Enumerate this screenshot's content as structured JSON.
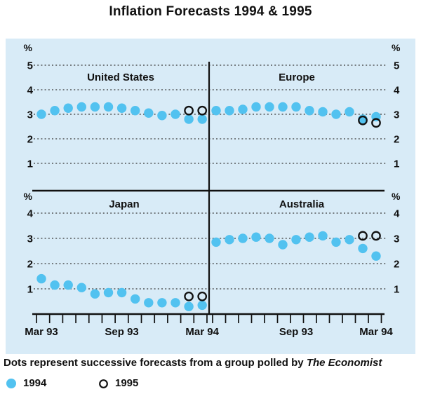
{
  "title": "Inflation Forecasts 1994 & 1995",
  "percent_symbol": "%",
  "caption": {
    "text": "Dots represent successive forecasts from a group polled by ",
    "source": "The Economist"
  },
  "legend": [
    {
      "label": "1994",
      "marker": "filled-dot"
    },
    {
      "label": "1995",
      "marker": "open-circle"
    }
  ],
  "colors": {
    "dot_1994": "#52C2F0",
    "circle_1995": "#111111",
    "panel_background": "#D8EBF7",
    "ink": "#111111",
    "gridline": "#3a3a3a"
  },
  "x_axis": {
    "left_labels": [
      {
        "label": "Mar 93",
        "month": 1
      },
      {
        "label": "Sep 93",
        "month": 7
      },
      {
        "label": "Mar 94",
        "month": 13
      }
    ],
    "right_labels": [
      {
        "label": "Sep 93",
        "month": 7
      },
      {
        "label": "Mar 94",
        "month": 13
      }
    ]
  },
  "chart_data": [
    {
      "type": "scatter",
      "title": "United States",
      "panel": "top-left",
      "x_range": [
        "Mar 93",
        "Mar 94"
      ],
      "ylim": [
        0,
        5
      ],
      "yticks": [
        1,
        2,
        3,
        4,
        5
      ],
      "series": [
        {
          "name": "1994",
          "marker": "filled-dot",
          "values": [
            3.0,
            3.15,
            3.25,
            3.3,
            3.3,
            3.3,
            3.25,
            3.15,
            3.05,
            2.95,
            3.0,
            2.8,
            2.8
          ]
        },
        {
          "name": "1995",
          "marker": "open-circle",
          "start_month": 12,
          "values": [
            3.15,
            3.15
          ]
        }
      ]
    },
    {
      "type": "scatter",
      "title": "Europe",
      "panel": "top-right",
      "x_range": [
        "Mar 93",
        "Mar 94"
      ],
      "ylim": [
        0,
        5
      ],
      "yticks": [
        1,
        2,
        3,
        4,
        5
      ],
      "series": [
        {
          "name": "1994",
          "marker": "filled-dot",
          "values": [
            3.15,
            3.15,
            3.2,
            3.3,
            3.3,
            3.3,
            3.3,
            3.15,
            3.1,
            3.0,
            3.1,
            2.8,
            2.9
          ]
        },
        {
          "name": "1995",
          "marker": "open-circle",
          "start_month": 12,
          "values": [
            2.75,
            2.65
          ]
        }
      ]
    },
    {
      "type": "scatter",
      "title": "Japan",
      "panel": "bottom-left",
      "x_range": [
        "Mar 93",
        "Mar 94"
      ],
      "ylim": [
        0,
        4
      ],
      "yticks": [
        1,
        2,
        3,
        4
      ],
      "series": [
        {
          "name": "1994",
          "marker": "filled-dot",
          "values": [
            1.4,
            1.15,
            1.15,
            1.05,
            0.8,
            0.85,
            0.85,
            0.6,
            0.45,
            0.45,
            0.45,
            0.3,
            0.35
          ]
        },
        {
          "name": "1995",
          "marker": "open-circle",
          "start_month": 12,
          "values": [
            0.7,
            0.7
          ]
        }
      ]
    },
    {
      "type": "scatter",
      "title": "Australia",
      "panel": "bottom-right",
      "x_range": [
        "Mar 93",
        "Mar 94"
      ],
      "ylim": [
        0,
        4
      ],
      "yticks": [
        1,
        2,
        3,
        4
      ],
      "series": [
        {
          "name": "1994",
          "marker": "filled-dot",
          "values": [
            2.85,
            2.95,
            3.0,
            3.05,
            3.0,
            2.75,
            2.95,
            3.05,
            3.1,
            2.85,
            2.95,
            2.6,
            2.3
          ]
        },
        {
          "name": "1995",
          "marker": "open-circle",
          "start_month": 12,
          "values": [
            3.1,
            3.1
          ]
        }
      ]
    }
  ]
}
